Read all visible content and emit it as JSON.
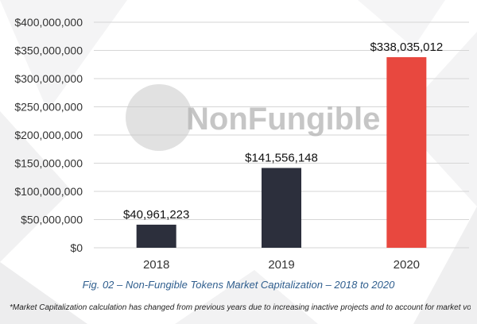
{
  "chart_data": {
    "type": "bar",
    "categories": [
      "2018",
      "2019",
      "2020"
    ],
    "values": [
      40961223,
      141556148,
      338035012
    ],
    "data_labels": [
      "$40,961,223",
      "$141,556,148",
      "$338,035,012"
    ],
    "bar_colors": [
      "#2c2f3c",
      "#2c2f3c",
      "#e8483f"
    ],
    "ylim": [
      0,
      400000000
    ],
    "y_ticks": [
      0,
      50000000,
      100000000,
      150000000,
      200000000,
      250000000,
      300000000,
      350000000,
      400000000
    ],
    "y_tick_labels": [
      "$0",
      "$50,000,000",
      "$100,000,000",
      "$150,000,000",
      "$200,000,000",
      "$250,000,000",
      "$300,000,000",
      "$350,000,000",
      "$400,000,000"
    ],
    "grid": true,
    "legend": "none"
  },
  "watermark": {
    "logo_text": "NonFungible"
  },
  "caption": "Fig. 02 – Non-Fungible Tokens Market Capitalization – 2018 to 2020",
  "footnote": "*Market Capitalization calculation has changed from previous years due to increasing inactive projects and to account for market volatility",
  "colors": {
    "grid": "#d6d6d6",
    "caption": "#2f5e8e"
  }
}
